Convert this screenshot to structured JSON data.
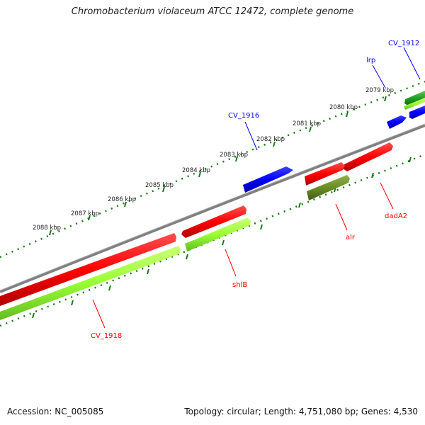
{
  "title": "Chromobacterium violaceum ATCC 12472, complete genome",
  "footer": {
    "accession": "Accession: NC_005085",
    "summary": "Topology: circular; Length: 4,751,080 bp; Genes: 4,530"
  },
  "ruler_labels": [
    "2079 kbp",
    "2080 kbp",
    "2081 kbp",
    "2082 kbp",
    "2083 kbp",
    "2084 kbp",
    "2085 kbp",
    "2086 kbp",
    "2087 kbp",
    "2088 kbp"
  ],
  "gene_labels": {
    "cv1912": "CV_1912",
    "lrp": "lrp",
    "cv1916": "CV_1916",
    "dada2": "dadA2",
    "alr": "alr",
    "shlb": "shlB",
    "cv1918": "CV_1918"
  },
  "colors": {
    "forward_gene": "#ff0000",
    "reverse_gene": "#ff0000",
    "misc_gene": "#0000ff",
    "cds_green": "#99ff33",
    "cds_olive": "#6b8e23",
    "ruler": "#1a7a1a",
    "backbone": "#808080"
  }
}
